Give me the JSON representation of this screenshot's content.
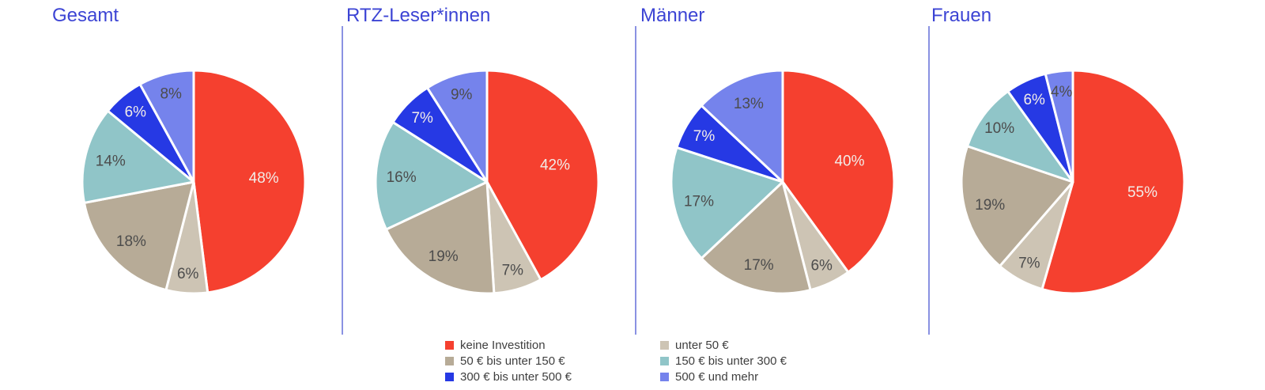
{
  "chart_data": {
    "type": "pie",
    "note": "Four pie charts sharing one category set; slices start at 12 o'clock and run clockwise",
    "categories": [
      "keine Investition",
      "unter 50 €",
      "50 € bis unter 150 €",
      "150 € bis unter 300 €",
      "300 € bis unter 500 €",
      "500 € und mehr"
    ],
    "colors": [
      "#F5402F",
      "#CDC4B4",
      "#B7AB97",
      "#90C5C8",
      "#2639E4",
      "#7583EC"
    ],
    "slice_label_styles": [
      "light",
      "dark",
      "dark",
      "dark",
      "light",
      "dark"
    ],
    "legend_columns": [
      [
        0,
        2,
        4
      ],
      [
        1,
        3,
        5
      ]
    ],
    "charts": [
      {
        "title": "Gesamt",
        "values": [
          48,
          6,
          18,
          14,
          6,
          8
        ],
        "value_labels": [
          "48%",
          "6%",
          "18%",
          "14%",
          "6%",
          "8%"
        ]
      },
      {
        "title": "RTZ-Leser*innen",
        "values": [
          42,
          7,
          19,
          16,
          7,
          9
        ],
        "value_labels": [
          "42%",
          "7%",
          "19%",
          "16%",
          "7%",
          "9%"
        ]
      },
      {
        "title": "Männer",
        "values": [
          40,
          6,
          17,
          17,
          7,
          13
        ],
        "value_labels": [
          "40%",
          "6%",
          "17%",
          "17%",
          "7%",
          "13%"
        ]
      },
      {
        "title": "Frauen",
        "values": [
          55,
          7,
          19,
          10,
          6,
          4
        ],
        "value_labels": [
          "55%",
          "7%",
          "19%",
          "10%",
          "6%",
          "4%"
        ]
      }
    ]
  },
  "colors": {
    "title": "#3C44D4",
    "separator": "#8A92E2",
    "slice_label_dark": "#4C4C4C",
    "slice_label_light": "#F2ECE8",
    "slice_border": "#FFFFFF",
    "legend_text": "#3F3F3F"
  }
}
